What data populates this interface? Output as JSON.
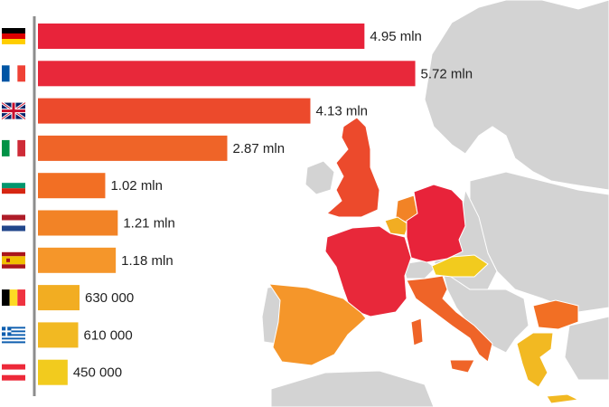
{
  "chart_data": {
    "type": "bar",
    "orientation": "horizontal",
    "categories": [
      "Germany",
      "France",
      "United Kingdom",
      "Italy",
      "Bulgaria",
      "Netherlands",
      "Spain",
      "Belgium",
      "Greece",
      "Austria"
    ],
    "values": [
      4950000,
      5720000,
      4130000,
      2870000,
      1020000,
      1210000,
      1180000,
      630000,
      610000,
      450000
    ],
    "value_labels": [
      "4.95 mln",
      "5.72 mln",
      "4.13 mln",
      "2.87 mln",
      "1.02 mln",
      "1.21 mln",
      "1.18 mln",
      "630 000",
      "610 000",
      "450 000"
    ],
    "bar_colors": [
      "#e8233a",
      "#e8283a",
      "#ec4a2c",
      "#ef6428",
      "#f26f24",
      "#f28326",
      "#f5962a",
      "#f2ad22",
      "#f2b922",
      "#f2cb1e"
    ],
    "xlim": [
      0,
      6000000
    ],
    "title": "",
    "xlabel": "",
    "ylabel": "",
    "flags": [
      "germany-flag",
      "france-flag",
      "uk-flag",
      "italy-flag",
      "bulgaria-flag",
      "netherlands-flag",
      "spain-flag",
      "belgium-flag",
      "greece-flag",
      "austria-flag"
    ]
  },
  "map": {
    "background_countries_color": "#d3d3d3",
    "highlighted": [
      {
        "country": "Germany",
        "color": "#e8233a"
      },
      {
        "country": "France",
        "color": "#e8283a"
      },
      {
        "country": "United Kingdom",
        "color": "#ec4a2c"
      },
      {
        "country": "Italy",
        "color": "#ef6428"
      },
      {
        "country": "Bulgaria",
        "color": "#f26f24"
      },
      {
        "country": "Netherlands",
        "color": "#f28326"
      },
      {
        "country": "Spain",
        "color": "#f5962a"
      },
      {
        "country": "Belgium",
        "color": "#f2ad22"
      },
      {
        "country": "Greece",
        "color": "#f2b922"
      },
      {
        "country": "Austria",
        "color": "#f2cb1e"
      }
    ]
  }
}
